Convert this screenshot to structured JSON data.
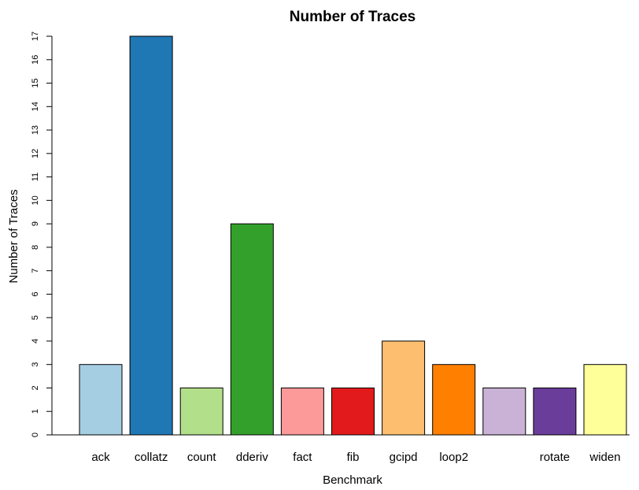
{
  "chart_data": {
    "type": "bar",
    "title": "Number of Traces",
    "xlabel": "Benchmark",
    "ylabel": "Number of Traces",
    "categories": [
      "ack",
      "collatz",
      "count",
      "dderiv",
      "fact",
      "fib",
      "gcipd",
      "loop2",
      "",
      "rotate",
      "widen"
    ],
    "values": [
      3,
      17,
      2,
      9,
      2,
      2,
      4,
      3,
      2,
      2,
      3
    ],
    "colors": [
      "#a6cee3",
      "#1f78b4",
      "#b2df8a",
      "#33a02c",
      "#fb9a99",
      "#e31a1c",
      "#fdbf6f",
      "#ff7f00",
      "#cab2d6",
      "#6a3d9a",
      "#ffff99"
    ],
    "ylim": [
      0,
      17
    ],
    "yticks": [
      "0",
      "1",
      "2",
      "3",
      "4",
      "5",
      "6",
      "7",
      "8",
      "9",
      "10",
      "11",
      "12",
      "13",
      "14",
      "15",
      "16",
      "17"
    ],
    "grid": false
  }
}
